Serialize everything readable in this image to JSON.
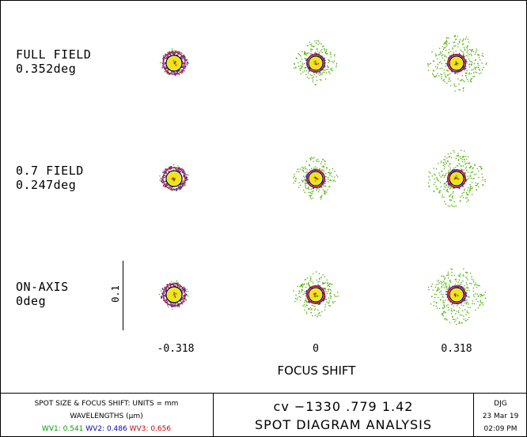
{
  "chart_data": {
    "type": "spot-diagram",
    "title": "SPOT DIAGRAM ANALYSIS",
    "xlabel": "FOCUS SHIFT",
    "focus_shifts": [
      "-0.318",
      "0",
      "0.318"
    ],
    "fields": [
      {
        "name": "FULL FIELD",
        "angle": "0.352deg"
      },
      {
        "name": "0.7 FIELD",
        "angle": "0.247deg"
      },
      {
        "name": "ON-AXIS",
        "angle": "0deg"
      }
    ],
    "scale_bar_label": "0.1",
    "wavelengths": [
      {
        "label": "WV1:",
        "value": "0.541",
        "color": "#00a000"
      },
      {
        "label": "WV2:",
        "value": "0.486",
        "color": "#0000c8"
      },
      {
        "label": "WV3:",
        "value": "0.656",
        "color": "#d00000"
      }
    ]
  },
  "footer": {
    "units_text": "SPOT SIZE & FOCUS SHIFT: UNITS = mm",
    "wavelengths_heading": "WAVELENGTHS (μm)",
    "params": "cv  −1330  .779  1.42",
    "title": "SPOT DIAGRAM ANALYSIS",
    "designer": "DJG",
    "date": "23 Mar 19",
    "time": "02:09 PM"
  },
  "colors": {
    "green": "#4caf00",
    "blue": "#3030c0",
    "red": "#d01010",
    "purple": "#7a3aa0",
    "yellow": "#f2e21a",
    "black": "#000000"
  }
}
